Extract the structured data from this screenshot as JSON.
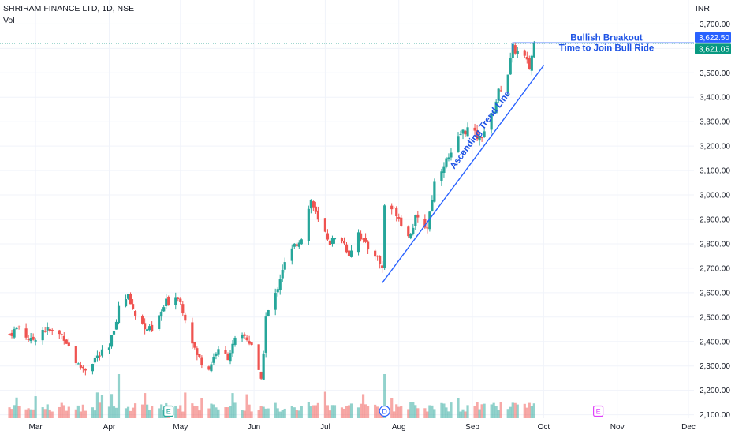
{
  "header": {
    "symbol_line": "SHRIRAM FINANCE LTD, 1D, NSE",
    "volume_label": "Vol",
    "currency": "INR"
  },
  "colors": {
    "up": "#26a69a",
    "down": "#ef5350",
    "annotation": "#2962ff",
    "annotation_text": "#1e53e5",
    "last_price_tag": "#089981",
    "axis_text": "#131722",
    "grid": "#f0f3fa",
    "event_earnings": "#26a69a",
    "event_earnings_future": "#e040fb",
    "event_dividend": "#2962ff"
  },
  "price_tags": {
    "high": "3,622.50",
    "last": "3,621.05"
  },
  "annotations": {
    "breakout_line1": "Bullish Breakout",
    "breakout_line2": "Time to Join Bull Ride",
    "trendline": "Ascending Trend Line"
  },
  "events": [
    {
      "type": "earnings",
      "symbol": "E",
      "date": "2024-04-26"
    },
    {
      "type": "dividend",
      "symbol": "D",
      "date": "2024-07-26"
    },
    {
      "type": "earnings-future",
      "symbol": "E",
      "date": "2024-10-24"
    }
  ],
  "chart_data": {
    "type": "candlestick",
    "title": "SHRIRAM FINANCE LTD, 1D, NSE",
    "x_axis": {
      "type": "date",
      "tick_labels": [
        "Mar",
        "Apr",
        "May",
        "Jun",
        "Jul",
        "Aug",
        "Sep",
        "Oct",
        "Nov",
        "Dec"
      ]
    },
    "y_axis": {
      "range": [
        2060,
        3740
      ],
      "tick_labels": [
        "2,100.00",
        "2,200.00",
        "2,300.00",
        "2,400.00",
        "2,500.00",
        "2,600.00",
        "2,700.00",
        "2,800.00",
        "2,900.00",
        "3,000.00",
        "3,100.00",
        "3,200.00",
        "3,300.00",
        "3,400.00",
        "3,500.00",
        "3,600.00",
        "3,700.00"
      ],
      "tick_values": [
        2100,
        2200,
        2300,
        2400,
        2500,
        2600,
        2700,
        2800,
        2900,
        3000,
        3100,
        3200,
        3300,
        3400,
        3500,
        3600,
        3700
      ]
    },
    "close_path": [
      {
        "date": "2024-02-19",
        "close": 2430
      },
      {
        "date": "2024-02-23",
        "close": 2460
      },
      {
        "date": "2024-02-28",
        "close": 2400
      },
      {
        "date": "2024-03-04",
        "close": 2450
      },
      {
        "date": "2024-03-08",
        "close": 2440
      },
      {
        "date": "2024-03-13",
        "close": 2420
      },
      {
        "date": "2024-03-19",
        "close": 2300
      },
      {
        "date": "2024-03-22",
        "close": 2290
      },
      {
        "date": "2024-03-26",
        "close": 2330
      },
      {
        "date": "2024-04-01",
        "close": 2370
      },
      {
        "date": "2024-04-05",
        "close": 2540
      },
      {
        "date": "2024-04-09",
        "close": 2580
      },
      {
        "date": "2024-04-12",
        "close": 2510
      },
      {
        "date": "2024-04-16",
        "close": 2460
      },
      {
        "date": "2024-04-19",
        "close": 2440
      },
      {
        "date": "2024-04-25",
        "close": 2560
      },
      {
        "date": "2024-04-30",
        "close": 2590
      },
      {
        "date": "2024-05-03",
        "close": 2500
      },
      {
        "date": "2024-05-08",
        "close": 2340
      },
      {
        "date": "2024-05-13",
        "close": 2290
      },
      {
        "date": "2024-05-16",
        "close": 2360
      },
      {
        "date": "2024-05-21",
        "close": 2340
      },
      {
        "date": "2024-05-24",
        "close": 2400
      },
      {
        "date": "2024-05-28",
        "close": 2420
      },
      {
        "date": "2024-05-31",
        "close": 2390
      },
      {
        "date": "2024-06-04",
        "close": 2230
      },
      {
        "date": "2024-06-06",
        "close": 2500
      },
      {
        "date": "2024-06-10",
        "close": 2590
      },
      {
        "date": "2024-06-13",
        "close": 2700
      },
      {
        "date": "2024-06-18",
        "close": 2790
      },
      {
        "date": "2024-06-21",
        "close": 2830
      },
      {
        "date": "2024-06-25",
        "close": 2980
      },
      {
        "date": "2024-06-28",
        "close": 2890
      },
      {
        "date": "2024-07-03",
        "close": 2810
      },
      {
        "date": "2024-07-08",
        "close": 2820
      },
      {
        "date": "2024-07-11",
        "close": 2760
      },
      {
        "date": "2024-07-15",
        "close": 2850
      },
      {
        "date": "2024-07-18",
        "close": 2790
      },
      {
        "date": "2024-07-22",
        "close": 2760
      },
      {
        "date": "2024-07-25",
        "close": 2700
      },
      {
        "date": "2024-07-26",
        "close": 2960
      },
      {
        "date": "2024-07-31",
        "close": 2930
      },
      {
        "date": "2024-08-05",
        "close": 2830
      },
      {
        "date": "2024-08-08",
        "close": 2900
      },
      {
        "date": "2024-08-13",
        "close": 2870
      },
      {
        "date": "2024-08-16",
        "close": 3050
      },
      {
        "date": "2024-08-20",
        "close": 3130
      },
      {
        "date": "2024-08-23",
        "close": 3160
      },
      {
        "date": "2024-08-27",
        "close": 3250
      },
      {
        "date": "2024-08-30",
        "close": 3270
      },
      {
        "date": "2024-09-04",
        "close": 3230
      },
      {
        "date": "2024-09-09",
        "close": 3320
      },
      {
        "date": "2024-09-12",
        "close": 3420
      },
      {
        "date": "2024-09-16",
        "close": 3500
      },
      {
        "date": "2024-09-18",
        "close": 3600
      },
      {
        "date": "2024-09-23",
        "close": 3560
      },
      {
        "date": "2024-09-25",
        "close": 3520
      },
      {
        "date": "2024-09-27",
        "close": 3621.05
      }
    ],
    "trendline": {
      "from": {
        "date": "2024-07-25",
        "price": 2640
      },
      "to": {
        "date": "2024-10-01",
        "price": 3530
      }
    },
    "breakout_level": {
      "price": 3622.5,
      "from_date": "2024-09-18",
      "to_date": "2024-10-01"
    },
    "last_price": 3621.05,
    "high_price": 3622.5,
    "volume_spikes": [
      {
        "date": "2024-04-05",
        "relative": 1.0
      },
      {
        "date": "2024-07-26",
        "relative": 1.0
      }
    ]
  }
}
